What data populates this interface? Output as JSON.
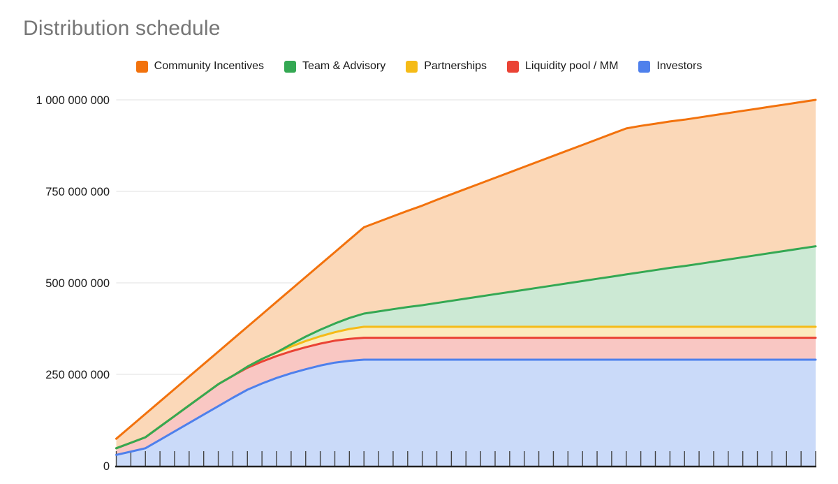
{
  "chart": {
    "title": "Distribution schedule",
    "title_color": "#757575"
  },
  "chart_data": {
    "type": "area",
    "stacked": true,
    "title": "Distribution schedule",
    "xlabel": "",
    "ylabel": "",
    "legend_position": "top",
    "grid": "horizontal",
    "unit_multiplier": 1000000,
    "x_note": "49 unlabeled monthly ticks (months 0-48)",
    "x": [
      0,
      1,
      2,
      3,
      4,
      5,
      6,
      7,
      8,
      9,
      10,
      11,
      12,
      13,
      14,
      15,
      16,
      17,
      18,
      19,
      20,
      21,
      22,
      23,
      24,
      25,
      26,
      27,
      28,
      29,
      30,
      31,
      32,
      33,
      34,
      35,
      36,
      37,
      38,
      39,
      40,
      41,
      42,
      43,
      44,
      45,
      46,
      47,
      48
    ],
    "y_axis": {
      "min": 0,
      "max": 1000000000,
      "tick_values_millions": [
        0,
        250,
        500,
        750,
        1000
      ],
      "tick_labels": [
        "0",
        "250 000 000",
        "500 000 000",
        "750 000 000",
        "1 000 000 000"
      ],
      "gridline_color": "#e6e6e6",
      "axis_line_color": "#212121",
      "label_color": "#1a1a1a"
    },
    "x_axis": {
      "tick_count": 49,
      "labels_shown": false,
      "tick_color": "#424242"
    },
    "series": [
      {
        "name": "Investors",
        "color": "#4e80ec",
        "fill": "#cadaf9",
        "values": [
          30,
          39,
          48,
          71,
          94,
          117,
          140,
          163,
          186,
          208,
          225,
          240,
          253,
          264,
          274,
          282,
          287,
          290,
          290,
          290,
          290,
          290,
          290,
          290,
          290,
          290,
          290,
          290,
          290,
          290,
          290,
          290,
          290,
          290,
          290,
          290,
          290,
          290,
          290,
          290,
          290,
          290,
          290,
          290,
          290,
          290,
          290,
          290,
          290
        ]
      },
      {
        "name": "Liquidity pool / MM",
        "color": "#ea4335",
        "fill": "#f9c7c3",
        "values": [
          18,
          24,
          30,
          36,
          42,
          48,
          54,
          60,
          60,
          60,
          60,
          60,
          60,
          60,
          60,
          60,
          60,
          60,
          60,
          60,
          60,
          60,
          60,
          60,
          60,
          60,
          60,
          60,
          60,
          60,
          60,
          60,
          60,
          60,
          60,
          60,
          60,
          60,
          60,
          60,
          60,
          60,
          60,
          60,
          60,
          60,
          60,
          60,
          60
        ]
      },
      {
        "name": "Partnerships",
        "color": "#f5bb17",
        "fill": "#fcebbe",
        "values": [
          0,
          0,
          0,
          0,
          0,
          0,
          0,
          0,
          0,
          3,
          7,
          10,
          13,
          17,
          20,
          23,
          27,
          30,
          30,
          30,
          30,
          30,
          30,
          30,
          30,
          30,
          30,
          30,
          30,
          30,
          30,
          30,
          30,
          30,
          30,
          30,
          30,
          30,
          30,
          30,
          30,
          30,
          30,
          30,
          30,
          30,
          30,
          30,
          30
        ]
      },
      {
        "name": "Team & Advisory",
        "color": "#34a853",
        "fill": "#cce9d4",
        "values": [
          0,
          0,
          0,
          0,
          0,
          0,
          0,
          0,
          0,
          0,
          0,
          0,
          6,
          12,
          18,
          24,
          30,
          36,
          42,
          48,
          54,
          59,
          65,
          71,
          77,
          83,
          89,
          95,
          101,
          107,
          113,
          119,
          125,
          131,
          137,
          143,
          149,
          155,
          161,
          166,
          172,
          178,
          184,
          190,
          196,
          202,
          208,
          214,
          220
        ]
      },
      {
        "name": "Community Incentives",
        "color": "#f2720d",
        "fill": "#fbd8b8",
        "values": [
          26,
          45,
          64,
          69,
          74,
          79,
          84,
          89,
          100,
          109,
          122,
          138,
          150,
          163,
          178,
          195,
          214,
          236,
          245,
          254,
          263,
          272,
          282,
          291,
          300,
          309,
          318,
          327,
          336,
          345,
          354,
          363,
          372,
          381,
          390,
          399,
          400,
          400,
          400,
          400,
          400,
          400,
          400,
          400,
          400,
          400,
          400,
          400,
          400
        ]
      }
    ],
    "legend_order": [
      "Community Incentives",
      "Team & Advisory",
      "Partnerships",
      "Liquidity pool / MM",
      "Investors"
    ]
  }
}
